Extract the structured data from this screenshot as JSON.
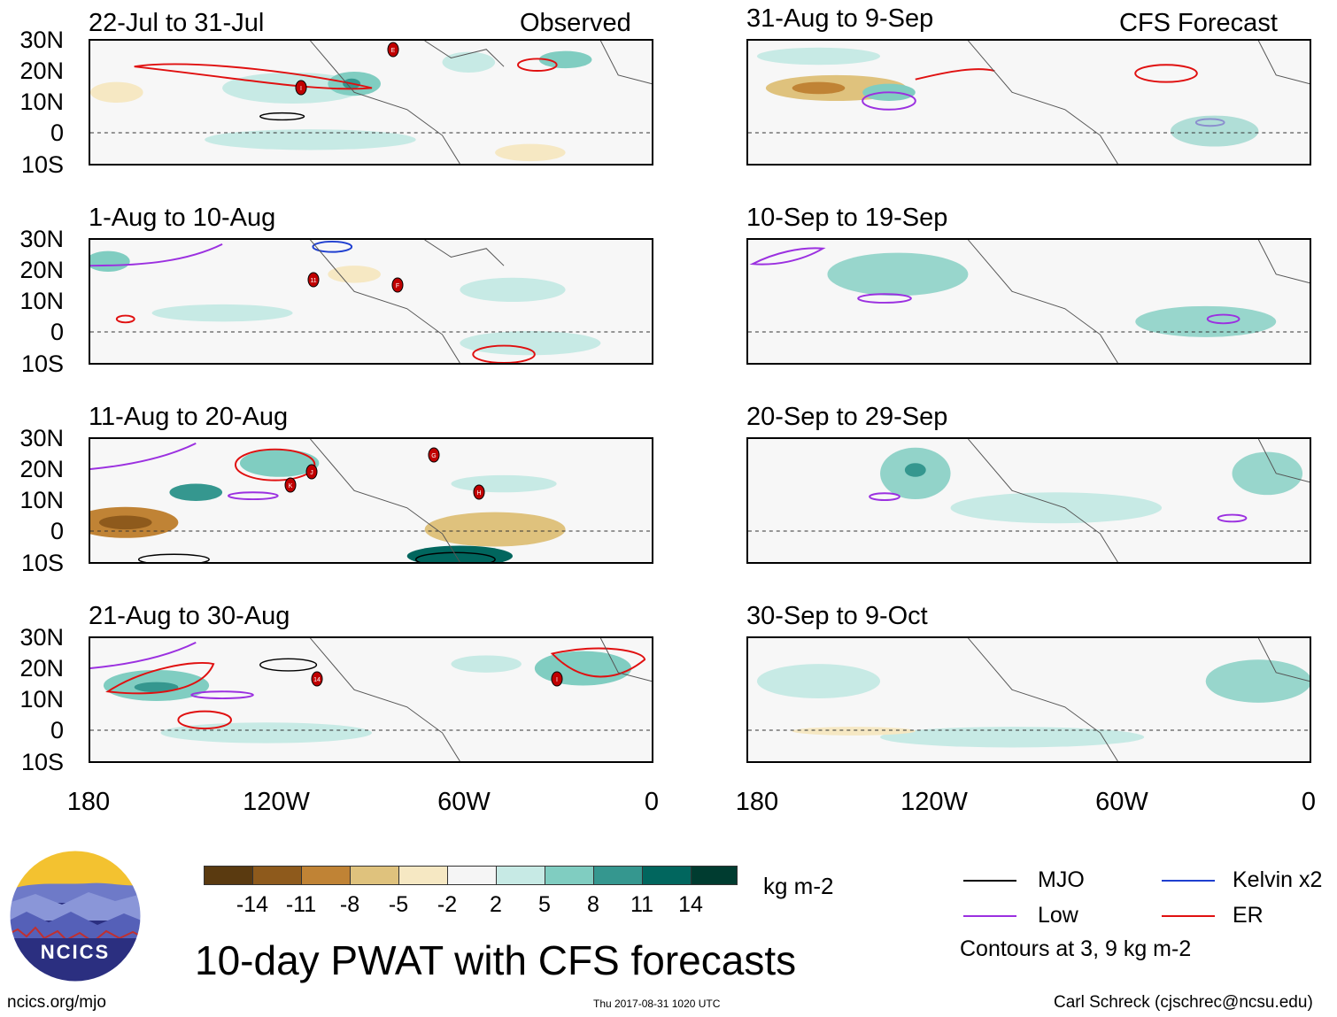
{
  "observed_label": "Observed",
  "forecast_label": "CFS Forecast",
  "lat_labels": [
    "30N",
    "20N",
    "10N",
    "0",
    "10S"
  ],
  "lon_labels": [
    "180",
    "120W",
    "60W",
    "0"
  ],
  "panels_left": [
    "22-Jul to 31-Jul",
    "1-Aug to 10-Aug",
    "11-Aug to 20-Aug",
    "21-Aug to 30-Aug"
  ],
  "panels_right": [
    "31-Aug to 9-Sep",
    "10-Sep to 19-Sep",
    "20-Sep to 29-Sep",
    "30-Sep to 9-Oct"
  ],
  "colorbar": {
    "ticks": [
      "-14",
      "-11",
      "-8",
      "-5",
      "-2",
      "2",
      "5",
      "8",
      "11",
      "14"
    ],
    "colors": [
      "#5a3a10",
      "#8e5a1c",
      "#c08335",
      "#dfc27d",
      "#f6e8c3",
      "#f5f5f5",
      "#c7eae5",
      "#80cdc1",
      "#35978f",
      "#01665e",
      "#003c30"
    ],
    "units": "kg m-2"
  },
  "title": "10-day PWAT with CFS forecasts",
  "logo_text": "NCICS",
  "website": "ncics.org/mjo",
  "timestamp": "Thu 2017-08-31 1020 UTC",
  "credit": "Carl Schreck (cjschrec@ncsu.edu)",
  "legend": {
    "items": [
      {
        "label": "MJO",
        "color": "#000000"
      },
      {
        "label": "Kelvin x2",
        "color": "#1f3fd0"
      },
      {
        "label": "Low",
        "color": "#9b30e0"
      },
      {
        "label": "ER",
        "color": "#e01010"
      }
    ],
    "note": "Contours at 3, 9 kg m-2"
  },
  "storm_markers": [
    "E",
    "I",
    "11",
    "F",
    "K",
    "J",
    "G",
    "H",
    "14",
    "I"
  ]
}
